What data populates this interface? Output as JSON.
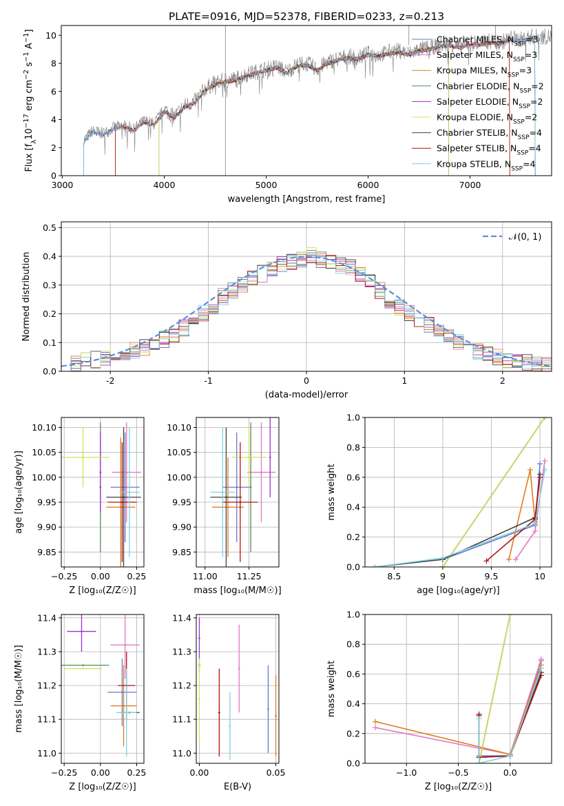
{
  "figure_title": "PLATE=0916, MJD=52378, FIBERID=0233, z=0.213",
  "series": [
    {
      "name": "Chabrier MILES, N_SSP=3",
      "short": "Chabrier MILES",
      "nssp": 3,
      "color": "#6677cc"
    },
    {
      "name": "Salpeter MILES, N_SSP=3",
      "short": "Salpeter MILES",
      "nssp": 3,
      "color": "#e377c2"
    },
    {
      "name": "Kroupa MILES, N_SSP=3",
      "short": "Kroupa MILES",
      "nssp": 3,
      "color": "#e07b1c"
    },
    {
      "name": "Chabrier ELODIE, N_SSP=2",
      "short": "Chabrier ELODIE",
      "nssp": 2,
      "color": "#5a8a5a"
    },
    {
      "name": "Salpeter ELODIE, N_SSP=2",
      "short": "Salpeter ELODIE",
      "nssp": 2,
      "color": "#9b30c8"
    },
    {
      "name": "Kroupa ELODIE, N_SSP=2",
      "short": "Kroupa ELODIE",
      "nssp": 2,
      "color": "#d4e157"
    },
    {
      "name": "Chabrier STELIB, N_SSP=4",
      "short": "Chabrier STELIB",
      "nssp": 4,
      "color": "#404040"
    },
    {
      "name": "Salpeter STELIB, N_SSP=4",
      "short": "Salpeter STELIB",
      "nssp": 4,
      "color": "#b01010"
    },
    {
      "name": "Kroupa STELIB, N_SSP=4",
      "short": "Kroupa STELIB",
      "nssp": 4,
      "color": "#80d0e0"
    }
  ],
  "chart_data": [
    {
      "id": "spectrum",
      "type": "line",
      "xlabel": "wavelength [Angstrom, rest frame]",
      "ylabel_parts": [
        "Flux [f",
        "λ",
        "10",
        "−17",
        " erg cm",
        "−2",
        " s",
        "−1",
        " A",
        "−1",
        "]"
      ],
      "xlim": [
        2990,
        7800
      ],
      "ylim": [
        0,
        10.7
      ],
      "xticks": [
        3000,
        4000,
        5000,
        6000,
        7000
      ],
      "yticks": [
        0,
        2,
        4,
        6,
        8,
        10
      ],
      "data_color": "#808080",
      "data_x": [
        3210,
        3300,
        3400,
        3500,
        3600,
        3700,
        3800,
        3900,
        4000,
        4100,
        4200,
        4300,
        4400,
        4500,
        4600,
        4700,
        4800,
        4900,
        5000,
        5100,
        5200,
        5300,
        5400,
        5500,
        5600,
        5700,
        5800,
        5900,
        6000,
        6100,
        6200,
        6300,
        6400,
        6500,
        6600,
        6700,
        6800,
        6900,
        7000,
        7100,
        7200,
        7300,
        7400,
        7500,
        7600
      ],
      "data_y": [
        2.5,
        3.2,
        3.0,
        3.4,
        3.6,
        3.3,
        3.9,
        3.7,
        4.7,
        4.2,
        5.0,
        5.3,
        6.2,
        6.6,
        6.8,
        6.9,
        7.2,
        7.4,
        7.6,
        7.8,
        7.4,
        7.9,
        8.0,
        7.6,
        8.1,
        8.3,
        8.5,
        8.4,
        8.7,
        8.6,
        8.8,
        8.9,
        8.7,
        9.0,
        9.1,
        9.3,
        9.4,
        9.2,
        9.5,
        9.4,
        9.6,
        9.5,
        9.8,
        9.7,
        9.9
      ],
      "model_start_x": [
        3210,
        3210,
        3520,
        3950,
        3950,
        3950,
        3210,
        3520,
        3210
      ],
      "model_end_x": [
        7640,
        7640,
        7390,
        6790,
        6790,
        6790,
        7640,
        7390,
        7640
      ],
      "legend_location": "upper right"
    },
    {
      "id": "residuals",
      "type": "histogram",
      "xlabel": "(data-model)/error",
      "ylabel": "Normed distribution",
      "xlim": [
        -2.5,
        2.5
      ],
      "ylim": [
        0,
        0.52
      ],
      "xticks": [
        -2,
        -1,
        0,
        1,
        2
      ],
      "yticks": [
        0,
        0.1,
        0.2,
        0.3,
        0.4,
        0.5
      ],
      "bin_width": 0.1,
      "bin_start": -2.5,
      "base_values": [
        0.02,
        0.03,
        0.035,
        0.04,
        0.05,
        0.06,
        0.07,
        0.075,
        0.085,
        0.1,
        0.11,
        0.13,
        0.15,
        0.17,
        0.2,
        0.22,
        0.26,
        0.28,
        0.3,
        0.32,
        0.34,
        0.36,
        0.37,
        0.38,
        0.39,
        0.4,
        0.39,
        0.38,
        0.37,
        0.36,
        0.34,
        0.31,
        0.28,
        0.25,
        0.22,
        0.2,
        0.18,
        0.16,
        0.14,
        0.12,
        0.1,
        0.085,
        0.07,
        0.06,
        0.05,
        0.04,
        0.035,
        0.03,
        0.025,
        0.02
      ],
      "reference_label": "𝒩(0, 1)",
      "reference_color": "#5b8fd6",
      "legend_location": "upper right"
    },
    {
      "id": "age-vs-Z",
      "type": "errorbar",
      "xlabel": "Z [log₁₀(Z/Z☉)]",
      "ylabel": "age  [log₁₀(age/yr)]",
      "xlim": [
        -0.27,
        0.3
      ],
      "ylim": [
        9.82,
        10.12
      ],
      "xticks": [
        -0.25,
        0,
        0.25
      ],
      "xticklabels": [
        "−0.25",
        "0.00",
        "0.25"
      ],
      "yticks": [
        9.85,
        9.9,
        9.95,
        10.0,
        10.05,
        10.1
      ],
      "points": [
        {
          "s": 0,
          "x": 0.17,
          "y": 9.98,
          "xerr": 0.1,
          "yerr": 0.11
        },
        {
          "s": 1,
          "x": 0.18,
          "y": 10.01,
          "xerr": 0.1,
          "yerr": 0.1
        },
        {
          "s": 2,
          "x": 0.14,
          "y": 9.94,
          "xerr": 0.1,
          "yerr": 0.14
        },
        {
          "s": 3,
          "x": 0.0,
          "y": 9.98,
          "xerr": 0.0,
          "yerr": 0.13
        },
        {
          "s": 4,
          "x": 0.0,
          "y": 10.01,
          "xerr": 0.0,
          "yerr": 0.08
        },
        {
          "s": 5,
          "x": -0.12,
          "y": 10.04,
          "xerr": 0.18,
          "yerr": 0.06
        },
        {
          "s": 6,
          "x": 0.16,
          "y": 9.96,
          "xerr": 0.12,
          "yerr": 0.14
        },
        {
          "s": 7,
          "x": 0.15,
          "y": 9.95,
          "xerr": 0.1,
          "yerr": 0.12
        },
        {
          "s": 8,
          "x": 0.2,
          "y": 9.97,
          "xerr": 0.07,
          "yerr": 0.13
        }
      ]
    },
    {
      "id": "age-vs-mass",
      "type": "errorbar",
      "xlabel": "mass [log₁₀(M/M☉)]",
      "ylabel": "",
      "xlim": [
        10.95,
        11.42
      ],
      "ylim": [
        9.82,
        10.12
      ],
      "xticks": [
        11.0,
        11.25
      ],
      "xticklabels": [
        "11.00",
        "11.25"
      ],
      "yticks": [
        9.85,
        9.9,
        9.95,
        10.0,
        10.05,
        10.1
      ],
      "points": [
        {
          "s": 0,
          "x": 11.18,
          "y": 9.98,
          "xerr": 0.08,
          "yerr": 0.11
        },
        {
          "s": 1,
          "x": 11.32,
          "y": 10.01,
          "xerr": 0.08,
          "yerr": 0.1
        },
        {
          "s": 2,
          "x": 11.13,
          "y": 9.94,
          "xerr": 0.09,
          "yerr": 0.1
        },
        {
          "s": 3,
          "x": 11.26,
          "y": 9.98,
          "xerr": 0.0,
          "yerr": 0.13
        },
        {
          "s": 4,
          "x": 11.37,
          "y": 10.04,
          "xerr": 0.0,
          "yerr": 0.08
        },
        {
          "s": 5,
          "x": 11.25,
          "y": 10.04,
          "xerr": 0.1,
          "yerr": 0.06
        },
        {
          "s": 6,
          "x": 11.12,
          "y": 9.96,
          "xerr": 0.09,
          "yerr": 0.14
        },
        {
          "s": 7,
          "x": 11.2,
          "y": 9.95,
          "xerr": 0.1,
          "yerr": 0.12
        },
        {
          "s": 8,
          "x": 11.1,
          "y": 9.97,
          "xerr": 0.07,
          "yerr": 0.13
        }
      ]
    },
    {
      "id": "weight-vs-age",
      "type": "line",
      "xlabel": "age  [log₁₀(age/yr)]",
      "ylabel": "mass weight",
      "xlim": [
        8.2,
        10.12
      ],
      "ylim": [
        0,
        1.0
      ],
      "xticks": [
        8.5,
        9.0,
        9.5,
        10.0
      ],
      "yticks": [
        0,
        0.2,
        0.4,
        0.6,
        0.8,
        1.0
      ],
      "lines": [
        {
          "s": 0,
          "points": [
            [
              9.0,
              0.05
            ],
            [
              9.95,
              0.28
            ],
            [
              10.0,
              0.69
            ]
          ]
        },
        {
          "s": 1,
          "points": [
            [
              9.75,
              0.05
            ],
            [
              9.95,
              0.24
            ],
            [
              10.05,
              0.71
            ]
          ]
        },
        {
          "s": 2,
          "points": [
            [
              9.68,
              0.05
            ],
            [
              9.9,
              0.65
            ],
            [
              9.95,
              0.3
            ]
          ]
        },
        {
          "s": 3,
          "points": [
            [
              9.0,
              0.0
            ],
            [
              10.05,
              1.0
            ]
          ]
        },
        {
          "s": 4,
          "points": [
            [
              9.0,
              0.0
            ],
            [
              10.05,
              1.0
            ]
          ]
        },
        {
          "s": 5,
          "points": [
            [
              9.0,
              0.0
            ],
            [
              10.05,
              1.0
            ]
          ]
        },
        {
          "s": 6,
          "points": [
            [
              8.3,
              0.0
            ],
            [
              9.0,
              0.05
            ],
            [
              9.95,
              0.33
            ],
            [
              10.0,
              0.62
            ]
          ]
        },
        {
          "s": 7,
          "points": [
            [
              9.45,
              0.04
            ],
            [
              9.95,
              0.32
            ],
            [
              10.0,
              0.6
            ]
          ]
        },
        {
          "s": 8,
          "points": [
            [
              8.3,
              0.0
            ],
            [
              9.0,
              0.06
            ],
            [
              9.95,
              0.29
            ],
            [
              10.05,
              0.65
            ]
          ]
        }
      ]
    },
    {
      "id": "mass-vs-Z",
      "type": "errorbar",
      "xlabel": "Z [log₁₀(Z/Z☉)]",
      "ylabel": "mass [log₁₀(M/M☉)]",
      "xlim": [
        -0.27,
        0.3
      ],
      "ylim": [
        10.97,
        11.41
      ],
      "xticks": [
        -0.25,
        0,
        0.25
      ],
      "xticklabels": [
        "−0.25",
        "0.00",
        "0.25"
      ],
      "yticks": [
        11.0,
        11.1,
        11.2,
        11.3,
        11.4
      ],
      "points": [
        {
          "s": 0,
          "x": 0.15,
          "y": 11.18,
          "xerr": 0.1,
          "yerr": 0.1
        },
        {
          "s": 1,
          "x": 0.17,
          "y": 11.32,
          "xerr": 0.1,
          "yerr": 0.1
        },
        {
          "s": 2,
          "x": 0.16,
          "y": 11.14,
          "xerr": 0.09,
          "yerr": 0.12
        },
        {
          "s": 3,
          "x": -0.12,
          "y": 11.26,
          "xerr": 0.18,
          "yerr": 0.0
        },
        {
          "s": 4,
          "x": -0.13,
          "y": 11.36,
          "xerr": 0.1,
          "yerr": 0.06
        },
        {
          "s": 5,
          "x": -0.12,
          "y": 11.25,
          "xerr": 0.13,
          "yerr": 0.0
        },
        {
          "s": 6,
          "x": 0.2,
          "y": 11.12,
          "xerr": 0.07,
          "yerr": 0.0
        },
        {
          "s": 7,
          "x": 0.18,
          "y": 11.2,
          "xerr": 0.06,
          "yerr": 0.1
        },
        {
          "s": 8,
          "x": 0.18,
          "y": 11.12,
          "xerr": 0.07,
          "yerr": 0.13
        }
      ]
    },
    {
      "id": "mass-vs-EBV",
      "type": "errorbar",
      "xlabel": "E(B-V)",
      "ylabel": "",
      "xlim": [
        -0.002,
        0.052
      ],
      "ylim": [
        10.97,
        11.41
      ],
      "xticks": [
        0.0,
        0.05
      ],
      "xticklabels": [
        "0.00",
        "0.05"
      ],
      "yticks": [
        11.0,
        11.1,
        11.2,
        11.3,
        11.4
      ],
      "points": [
        {
          "s": 0,
          "x": 0.045,
          "y": 11.13,
          "xerr": 0,
          "yerr": 0.13
        },
        {
          "s": 1,
          "x": 0.026,
          "y": 11.25,
          "xerr": 0,
          "yerr": 0.13
        },
        {
          "s": 2,
          "x": 0.05,
          "y": 11.11,
          "xerr": 0,
          "yerr": 0.12
        },
        {
          "s": 3,
          "x": 0.0,
          "y": 11.26,
          "xerr": 0,
          "yerr": 0.02
        },
        {
          "s": 4,
          "x": 0.0,
          "y": 11.34,
          "xerr": 0,
          "yerr": 0.06
        },
        {
          "s": 5,
          "x": 0.0,
          "y": 11.16,
          "xerr": 0,
          "yerr": 0.12
        },
        {
          "s": 6,
          "x": 0.013,
          "y": 11.12,
          "xerr": 0,
          "yerr": 0.0
        },
        {
          "s": 7,
          "x": 0.013,
          "y": 11.12,
          "xerr": 0,
          "yerr": 0.13
        },
        {
          "s": 8,
          "x": 0.02,
          "y": 11.08,
          "xerr": 0,
          "yerr": 0.1
        }
      ]
    },
    {
      "id": "weight-vs-Z",
      "type": "line",
      "xlabel": "Z [log₁₀(Z/Z☉)]",
      "ylabel": "mass weight",
      "xlim": [
        -1.4,
        0.4
      ],
      "ylim": [
        0,
        1.0
      ],
      "xticks": [
        -1.0,
        -0.5,
        0.0
      ],
      "xticklabels": [
        "−1.0",
        "−0.5",
        "0.0"
      ],
      "yticks": [
        0,
        0.2,
        0.4,
        0.6,
        0.8,
        1.0
      ],
      "lines": [
        {
          "s": 0,
          "points": [
            [
              -0.3,
              0.05
            ],
            [
              0.0,
              0.05
            ],
            [
              0.3,
              0.69
            ]
          ]
        },
        {
          "s": 1,
          "points": [
            [
              -1.3,
              0.24
            ],
            [
              0.0,
              0.06
            ],
            [
              0.3,
              0.7
            ]
          ]
        },
        {
          "s": 2,
          "points": [
            [
              -1.3,
              0.28
            ],
            [
              0.0,
              0.06
            ],
            [
              0.3,
              0.66
            ]
          ]
        },
        {
          "s": 3,
          "points": [
            [
              -0.3,
              0.0
            ],
            [
              0.0,
              1.0
            ]
          ]
        },
        {
          "s": 4,
          "points": [
            [
              -0.3,
              0.0
            ],
            [
              0.0,
              1.0
            ]
          ]
        },
        {
          "s": 5,
          "points": [
            [
              -0.3,
              0.0
            ],
            [
              0.0,
              1.0
            ]
          ]
        },
        {
          "s": 6,
          "points": [
            [
              -0.3,
              0.33
            ],
            [
              -0.3,
              0.04
            ],
            [
              0.0,
              0.05
            ],
            [
              0.3,
              0.61
            ]
          ]
        },
        {
          "s": 7,
          "points": [
            [
              -0.3,
              0.32
            ],
            [
              -0.3,
              0.04
            ],
            [
              0.0,
              0.05
            ],
            [
              0.3,
              0.59
            ]
          ]
        },
        {
          "s": 8,
          "points": [
            [
              -0.3,
              0.3
            ],
            [
              -0.3,
              0.0
            ],
            [
              0.0,
              0.05
            ],
            [
              0.3,
              0.64
            ]
          ]
        }
      ]
    }
  ]
}
